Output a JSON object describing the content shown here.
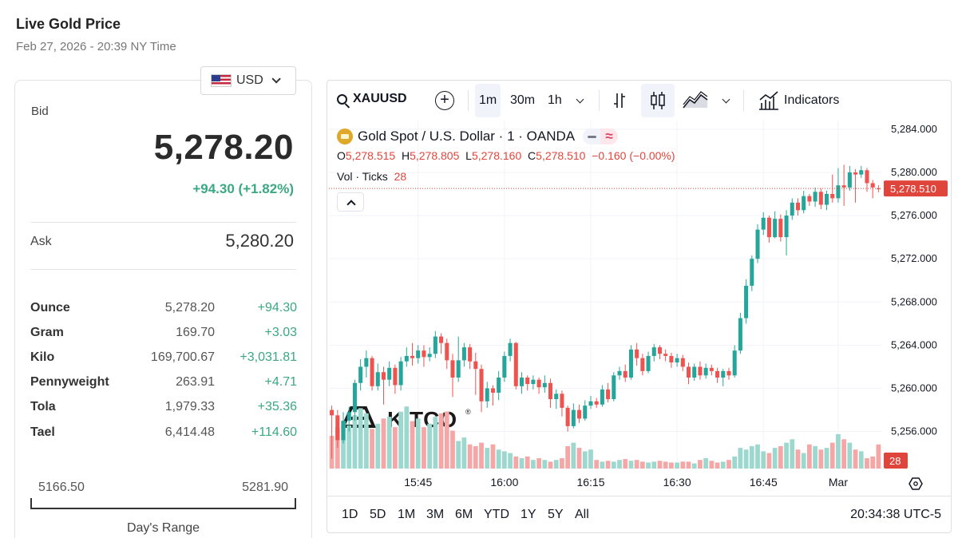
{
  "header": {
    "title": "Live Gold Price",
    "date": "Feb 27, 2026 - 20:39 NY Time"
  },
  "currency": {
    "selected": "USD",
    "flag": "us-flag-icon"
  },
  "quote": {
    "bid_label": "Bid",
    "bid": "5,278.20",
    "change": "+94.30 (+1.82%)",
    "ask_label": "Ask",
    "ask": "5,280.20"
  },
  "units": [
    {
      "name": "Ounce",
      "price": "5,278.20",
      "change": "+94.30"
    },
    {
      "name": "Gram",
      "price": "169.70",
      "change": "+3.03"
    },
    {
      "name": "Kilo",
      "price": "169,700.67",
      "change": "+3,031.81"
    },
    {
      "name": "Pennyweight",
      "price": "263.91",
      "change": "+4.71"
    },
    {
      "name": "Tola",
      "price": "1,979.33",
      "change": "+35.36"
    },
    {
      "name": "Tael",
      "price": "6,414.48",
      "change": "+114.60"
    }
  ],
  "day_range": {
    "low": "5166.50",
    "high": "5281.90",
    "label": "Day's Range"
  },
  "colors": {
    "up": "#26a69a",
    "down": "#ef5350",
    "vol_up": "#9dd8cf",
    "vol_down": "#f4a7a6",
    "change_green": "#3aa882",
    "price_tag": "#e0453c"
  },
  "chart": {
    "toolbar": {
      "symbol": "XAUUSD",
      "intervals": [
        "1m",
        "30m",
        "1h"
      ],
      "active_interval": "1m",
      "indicators_label": "Indicators"
    },
    "legend": {
      "title": "Gold Spot / U.S. Dollar · 1 · OANDA",
      "o_label": "O",
      "o": "5,278.515",
      "h_label": "H",
      "h": "5,278.805",
      "l_label": "L",
      "l": "5,278.160",
      "c_label": "C",
      "c": "5,278.510",
      "chg": "−0.160 (−0.00%)",
      "vol_label": "Vol · Ticks",
      "vol": "28",
      "pill_symbol": "≈"
    },
    "watermark": "KITCO",
    "watermark_mark": "®",
    "last_price_tag": "5,278.510",
    "vol_tag": "28",
    "bottom": {
      "ranges": [
        "1D",
        "5D",
        "1M",
        "3M",
        "6M",
        "YTD",
        "1Y",
        "5Y",
        "All"
      ],
      "time": "20:34:38 UTC-5"
    }
  },
  "chart_data": {
    "type": "candlestick",
    "y_ticks": [
      "5,284.000",
      "5,280.000",
      "5,276.000",
      "5,272.000",
      "5,268.000",
      "5,264.000",
      "5,260.000",
      "5,256.000"
    ],
    "y_tick_values": [
      5284,
      5280,
      5276,
      5272,
      5268,
      5264,
      5260,
      5256
    ],
    "x_ticks": [
      "15:45",
      "16:00",
      "16:15",
      "16:30",
      "16:45",
      "Mar"
    ],
    "x_tick_minutes": [
      15,
      30,
      45,
      60,
      75,
      88
    ],
    "ylim": [
      5252.5,
      5284.8
    ],
    "xlim": [
      -0.5,
      95.5
    ],
    "grid": true,
    "last_price": 5278.51,
    "candles": [
      [
        0,
        5258.0,
        5257.5,
        5258.4,
        5253.5
      ],
      [
        1,
        5257.5,
        5255.2,
        5258.0,
        5254.5
      ],
      [
        2,
        5255.2,
        5257.0,
        5257.8,
        5254.9
      ],
      [
        3,
        5257.0,
        5257.8,
        5258.3,
        5256.0
      ],
      [
        4,
        5257.8,
        5260.5,
        5260.8,
        5257.0
      ],
      [
        5,
        5260.5,
        5262.0,
        5262.7,
        5259.8
      ],
      [
        6,
        5262.0,
        5262.8,
        5263.5,
        5261.0
      ],
      [
        7,
        5262.8,
        5260.2,
        5263.0,
        5259.8
      ],
      [
        8,
        5260.2,
        5261.5,
        5262.3,
        5259.8
      ],
      [
        9,
        5261.5,
        5260.8,
        5262.0,
        5258.5
      ],
      [
        10,
        5260.8,
        5261.9,
        5262.5,
        5260.2
      ],
      [
        11,
        5261.9,
        5260.3,
        5262.2,
        5259.5
      ],
      [
        12,
        5260.3,
        5262.5,
        5262.9,
        5259.8
      ],
      [
        13,
        5262.5,
        5263.0,
        5263.8,
        5262.0
      ],
      [
        14,
        5263.0,
        5262.8,
        5264.2,
        5262.1
      ],
      [
        15,
        5262.8,
        5263.5,
        5264.0,
        5262.3
      ],
      [
        16,
        5263.5,
        5262.9,
        5264.0,
        5262.0
      ],
      [
        17,
        5262.9,
        5263.2,
        5263.8,
        5262.5
      ],
      [
        18,
        5263.2,
        5264.8,
        5265.3,
        5262.8
      ],
      [
        19,
        5264.8,
        5264.2,
        5265.1,
        5263.2
      ],
      [
        20,
        5264.2,
        5262.6,
        5264.6,
        5261.8
      ],
      [
        21,
        5262.6,
        5261.0,
        5263.2,
        5259.2
      ],
      [
        22,
        5261.0,
        5262.6,
        5264.8,
        5260.6
      ],
      [
        23,
        5262.6,
        5263.8,
        5264.2,
        5262.0
      ],
      [
        24,
        5263.8,
        5262.5,
        5264.1,
        5261.8
      ],
      [
        25,
        5262.5,
        5261.8,
        5263.3,
        5259.4
      ],
      [
        26,
        5261.8,
        5258.8,
        5262.2,
        5257.8
      ],
      [
        27,
        5258.8,
        5260.0,
        5260.6,
        5258.2
      ],
      [
        28,
        5260.0,
        5259.6,
        5260.3,
        5258.4
      ],
      [
        29,
        5259.6,
        5261.0,
        5261.6,
        5258.9
      ],
      [
        30,
        5261.0,
        5263.0,
        5263.4,
        5260.6
      ],
      [
        31,
        5263.0,
        5264.2,
        5264.6,
        5262.5
      ],
      [
        32,
        5264.2,
        5260.2,
        5264.3,
        5259.9
      ],
      [
        33,
        5260.2,
        5261.0,
        5261.5,
        5259.5
      ],
      [
        34,
        5261.0,
        5260.4,
        5261.2,
        5259.8
      ],
      [
        35,
        5260.4,
        5260.8,
        5261.2,
        5259.9
      ],
      [
        36,
        5260.8,
        5260.1,
        5261.0,
        5259.5
      ],
      [
        37,
        5260.1,
        5260.5,
        5261.2,
        5259.6
      ],
      [
        38,
        5260.5,
        5259.0,
        5260.9,
        5258.2
      ],
      [
        39,
        5259.0,
        5259.5,
        5259.9,
        5258.1
      ],
      [
        40,
        5259.5,
        5258.2,
        5259.8,
        5257.4
      ],
      [
        41,
        5258.2,
        5256.5,
        5258.4,
        5256.0
      ],
      [
        42,
        5256.5,
        5258.0,
        5258.6,
        5256.3
      ],
      [
        43,
        5258.0,
        5257.2,
        5258.5,
        5256.8
      ],
      [
        44,
        5257.2,
        5258.4,
        5258.9,
        5257.0
      ],
      [
        45,
        5258.4,
        5258.8,
        5259.3,
        5258.1
      ],
      [
        46,
        5258.8,
        5258.5,
        5259.1,
        5258.2
      ],
      [
        47,
        5258.5,
        5259.9,
        5260.3,
        5258.3
      ],
      [
        48,
        5259.9,
        5259.0,
        5260.5,
        5258.7
      ],
      [
        49,
        5259.0,
        5261.2,
        5261.5,
        5258.8
      ],
      [
        50,
        5261.2,
        5261.6,
        5262.0,
        5260.8
      ],
      [
        51,
        5261.6,
        5261.0,
        5262.2,
        5260.6
      ],
      [
        52,
        5261.0,
        5263.6,
        5264.0,
        5260.8
      ],
      [
        53,
        5263.6,
        5262.8,
        5264.2,
        5262.1
      ],
      [
        54,
        5262.8,
        5261.6,
        5263.2,
        5261.2
      ],
      [
        55,
        5261.6,
        5263.0,
        5263.4,
        5261.4
      ],
      [
        56,
        5263.0,
        5263.8,
        5264.1,
        5262.5
      ],
      [
        57,
        5263.8,
        5263.2,
        5264.0,
        5262.7
      ],
      [
        58,
        5263.2,
        5263.0,
        5263.6,
        5262.5
      ],
      [
        59,
        5263.0,
        5262.4,
        5263.3,
        5261.9
      ],
      [
        60,
        5262.4,
        5262.8,
        5263.2,
        5262.0
      ],
      [
        61,
        5262.8,
        5262.0,
        5263.1,
        5261.6
      ],
      [
        62,
        5262.0,
        5261.0,
        5262.4,
        5260.4
      ],
      [
        63,
        5261.0,
        5262.0,
        5262.3,
        5260.7
      ],
      [
        64,
        5262.0,
        5261.2,
        5262.5,
        5260.8
      ],
      [
        65,
        5261.2,
        5261.9,
        5262.3,
        5260.9
      ],
      [
        66,
        5261.9,
        5261.6,
        5262.2,
        5261.2
      ],
      [
        67,
        5261.6,
        5261.0,
        5261.9,
        5260.5
      ],
      [
        68,
        5261.0,
        5261.6,
        5261.8,
        5260.2
      ],
      [
        69,
        5261.6,
        5261.2,
        5261.9,
        5260.8
      ],
      [
        70,
        5261.2,
        5263.5,
        5264.0,
        5261.0
      ],
      [
        71,
        5263.5,
        5266.5,
        5267.0,
        5263.2
      ],
      [
        72,
        5266.5,
        5269.5,
        5270.1,
        5266.0
      ],
      [
        73,
        5269.5,
        5272.0,
        5272.3,
        5269.0
      ],
      [
        74,
        5272.0,
        5274.7,
        5275.2,
        5271.6
      ],
      [
        75,
        5274.7,
        5275.8,
        5276.3,
        5274.2
      ],
      [
        76,
        5275.8,
        5274.0,
        5276.0,
        5273.5
      ],
      [
        77,
        5274.0,
        5275.7,
        5276.4,
        5273.9
      ],
      [
        78,
        5275.7,
        5274.0,
        5276.1,
        5273.6
      ],
      [
        79,
        5274.0,
        5276.0,
        5276.5,
        5272.3
      ],
      [
        80,
        5276.0,
        5277.2,
        5277.6,
        5275.6
      ],
      [
        81,
        5277.2,
        5276.5,
        5277.6,
        5276.0
      ],
      [
        82,
        5276.5,
        5277.8,
        5278.3,
        5276.2
      ],
      [
        83,
        5277.8,
        5277.3,
        5278.0,
        5276.9
      ],
      [
        84,
        5277.3,
        5278.2,
        5278.6,
        5276.8
      ],
      [
        85,
        5278.2,
        5277.0,
        5278.5,
        5276.6
      ],
      [
        86,
        5277.0,
        5278.0,
        5278.3,
        5276.5
      ],
      [
        87,
        5278.0,
        5277.6,
        5279.8,
        5277.2
      ],
      [
        88,
        5277.6,
        5278.8,
        5280.4,
        5277.2
      ],
      [
        89,
        5278.8,
        5278.6,
        5280.7,
        5276.9
      ],
      [
        90,
        5278.6,
        5280.0,
        5280.6,
        5278.3
      ],
      [
        91,
        5280.0,
        5279.8,
        5280.3,
        5277.2
      ],
      [
        92,
        5279.8,
        5280.2,
        5280.6,
        5279.5
      ],
      [
        93,
        5280.2,
        5279.0,
        5280.4,
        5278.2
      ],
      [
        94,
        5279.0,
        5278.6,
        5279.3,
        5277.6
      ],
      [
        95,
        5278.515,
        5278.51,
        5278.805,
        5278.16
      ]
    ],
    "volume": [
      38,
      48,
      55,
      50,
      62,
      70,
      64,
      46,
      52,
      58,
      60,
      48,
      66,
      72,
      55,
      58,
      48,
      52,
      60,
      64,
      66,
      44,
      32,
      36,
      28,
      26,
      30,
      24,
      28,
      22,
      20,
      18,
      14,
      12,
      14,
      10,
      12,
      10,
      8,
      10,
      12,
      26,
      30,
      24,
      20,
      22,
      10,
      8,
      9,
      8,
      10,
      11,
      9,
      10,
      8,
      7,
      8,
      9,
      8,
      7,
      7,
      8,
      8,
      6,
      10,
      12,
      9,
      7,
      8,
      10,
      14,
      24,
      22,
      26,
      28,
      20,
      18,
      24,
      26,
      30,
      34,
      22,
      18,
      28,
      26,
      22,
      24,
      30,
      40,
      34,
      30,
      22,
      20,
      12,
      14,
      28
    ],
    "volume_max": 70
  }
}
